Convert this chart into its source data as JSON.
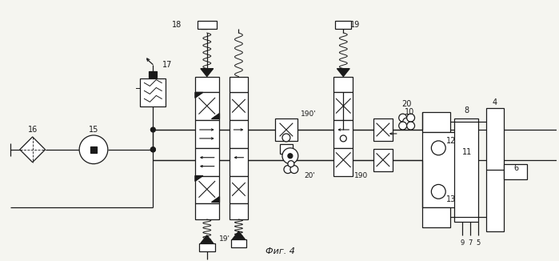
{
  "title": "Фиг. 4",
  "bg_color": "#f5f5f0",
  "line_color": "#1a1a1a",
  "lw": 0.9
}
